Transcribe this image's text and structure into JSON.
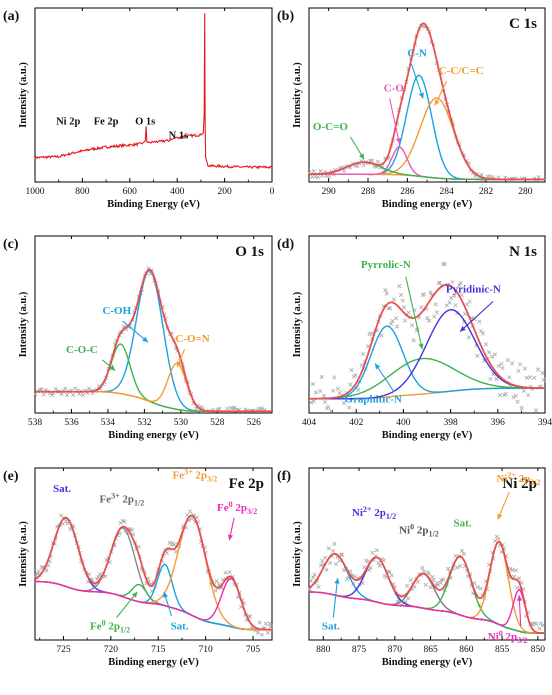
{
  "chart_data": [
    {
      "panel": "(a)",
      "type": "line",
      "title": "",
      "xlabel": "Binding Energy (eV)",
      "ylabel": "Intensity (a.u.)",
      "xlim": [
        1000,
        0
      ],
      "ylim": [
        0,
        100
      ],
      "x_reversed": true,
      "xticks": [
        1000,
        800,
        600,
        400,
        200,
        0
      ],
      "series": [
        {
          "color": "#e41a1c",
          "x": [
            1000,
            950,
            900,
            860,
            820,
            780,
            760,
            720,
            700,
            680,
            640,
            600,
            560,
            545,
            535,
            531,
            528,
            520,
            500,
            470,
            440,
            420,
            410,
            400,
            395,
            380,
            360,
            340,
            320,
            300,
            295,
            290,
            286,
            284,
            282,
            280,
            270,
            250,
            200,
            150,
            100,
            50,
            0
          ],
          "y": [
            14,
            14.3,
            14.6,
            16,
            17.3,
            18.3,
            19,
            19.6,
            20.1,
            20.3,
            20.8,
            21.3,
            21.8,
            22.5,
            23.5,
            32,
            23,
            22.5,
            23,
            23.3,
            23.8,
            24.6,
            25.3,
            25.8,
            25,
            26,
            26.3,
            26.6,
            26.9,
            27,
            27.6,
            28,
            40,
            97,
            34,
            14,
            9.5,
            9.2,
            9,
            8.7,
            8.5,
            8.5,
            8.5
          ]
        }
      ],
      "annotations": [
        {
          "text": "Ni 2p",
          "x": 860,
          "y": 33
        },
        {
          "text": "Fe 2p",
          "x": 700,
          "y": 33
        },
        {
          "text": "O 1s",
          "x": 535,
          "y": 33
        },
        {
          "text": "N 1s",
          "x": 395,
          "y": 25
        },
        {
          "text": "C 1s",
          "x": 275,
          "y": 105
        }
      ]
    },
    {
      "panel": "(b)",
      "type": "line",
      "title": "C 1s",
      "xlabel": "Binding energy (eV)",
      "ylabel": "Intensity (a.u.)",
      "xlim": [
        291,
        279
      ],
      "ylim": [
        0,
        100
      ],
      "x_reversed": true,
      "xticks": [
        290,
        288,
        286,
        284,
        282,
        280
      ],
      "series": [
        {
          "name": "C-N",
          "color": "#1ba1e2",
          "center": 285.4,
          "fwhm": 1.5,
          "height": 58
        },
        {
          "name": "C-C/C=C",
          "color": "#f39b2f",
          "center": 284.5,
          "fwhm": 2.0,
          "height": 46
        },
        {
          "name": "C-O",
          "color": "#ee55bb",
          "center": 286.4,
          "fwhm": 0.9,
          "height": 16
        },
        {
          "name": "O-C=O",
          "color": "#3cb44b",
          "center": 288.2,
          "fwhm": 2.0,
          "height": 7
        },
        {
          "name": "envelope",
          "color": "#e55050"
        },
        {
          "name": "background",
          "color": "#f39b2f",
          "baseline_left": 4.5,
          "baseline_right": 1.5
        }
      ]
    },
    {
      "panel": "(c)",
      "type": "line",
      "title": "O 1s",
      "xlabel": "Binding energy (eV)",
      "ylabel": "Intensity (a.u.)",
      "xlim": [
        538,
        525
      ],
      "ylim": [
        0,
        100
      ],
      "x_reversed": true,
      "xticks": [
        538,
        536,
        534,
        532,
        530,
        528,
        526
      ],
      "series": [
        {
          "name": "C-OH",
          "color": "#1ba1e2",
          "center": 531.7,
          "fwhm": 1.7,
          "height": 74
        },
        {
          "name": "C-O-C",
          "color": "#3cb44b",
          "center": 533.3,
          "fwhm": 1.2,
          "height": 28
        },
        {
          "name": "C-O=N",
          "color": "#f39b2f",
          "center": 530.2,
          "fwhm": 1.2,
          "height": 26
        },
        {
          "name": "envelope",
          "color": "#e55050"
        },
        {
          "name": "background",
          "color": "#f39b2f",
          "baseline_left": 12,
          "baseline_right": 1
        }
      ]
    },
    {
      "panel": "(d)",
      "type": "line",
      "title": "N 1s",
      "xlabel": "Binding energy (eV)",
      "ylabel": "Intensity (a.u.)",
      "xlim": [
        404,
        394
      ],
      "ylim": [
        0,
        100
      ],
      "x_reversed": true,
      "xticks": [
        404,
        402,
        400,
        398,
        396,
        394
      ],
      "series": [
        {
          "name": "Graphitic-N",
          "color": "#1ba1e2",
          "center": 400.7,
          "fwhm": 1.6,
          "height": 40
        },
        {
          "name": "Pyrrolic-N",
          "color": "#3cb44b",
          "center": 399.2,
          "fwhm": 3.2,
          "height": 20
        },
        {
          "name": "Pyridinic-N",
          "color": "#4433dd",
          "center": 398.0,
          "fwhm": 2.4,
          "height": 46
        },
        {
          "name": "envelope",
          "color": "#e55050"
        },
        {
          "name": "background",
          "color": "#f39b2f",
          "baseline_left": 8,
          "baseline_right": 14
        }
      ]
    },
    {
      "panel": "(e)",
      "type": "line",
      "title": "Fe 2p",
      "xlabel": "Binding energy (eV)",
      "ylabel": "Intensity (a.u.)",
      "xlim": [
        728,
        703
      ],
      "ylim": [
        0,
        100
      ],
      "x_reversed": true,
      "xticks": [
        725,
        720,
        715,
        710,
        705
      ],
      "series": [
        {
          "name": "Sat.",
          "color": "#4433dd",
          "center": 724.7,
          "fwhm": 3.0,
          "height": 40
        },
        {
          "name": "Fe3+ 2p1/2",
          "color": "#888888",
          "center": 718.7,
          "fwhm": 3.0,
          "height": 40
        },
        {
          "name": "Fe0 2p1/2",
          "color": "#3cb44b",
          "center": 717.0,
          "fwhm": 1.8,
          "height": 10
        },
        {
          "name": "Sat.",
          "color": "#1ba1e2",
          "center": 714.3,
          "fwhm": 1.8,
          "height": 24
        },
        {
          "name": "Fe3+ 2p3/2",
          "color": "#f39b2f",
          "center": 711.4,
          "fwhm": 3.4,
          "height": 58
        },
        {
          "name": "Fe0 2p3/2",
          "color": "#ee2bb0",
          "center": 707.3,
          "fwhm": 2.4,
          "height": 28
        },
        {
          "name": "envelope",
          "color": "#e55050"
        },
        {
          "name": "background",
          "color": "#f39b2f",
          "baseline_left": 34,
          "baseline_right": 6
        }
      ]
    },
    {
      "panel": "(f)",
      "type": "line",
      "title": "Ni 2p",
      "xlabel": "Binding energy (eV)",
      "ylabel": "Intensity (a.u.)",
      "xlim": [
        882,
        849
      ],
      "ylim": [
        0,
        100
      ],
      "x_reversed": true,
      "xticks": [
        880,
        875,
        870,
        865,
        860,
        855,
        850
      ],
      "series": [
        {
          "name": "Sat.",
          "color": "#1ba1e2",
          "center": 878.3,
          "fwhm": 4.0,
          "height": 24
        },
        {
          "name": "Ni2+ 2p1/2",
          "color": "#4433dd",
          "center": 872.5,
          "fwhm": 3.8,
          "height": 26
        },
        {
          "name": "Ni0 2p1/2",
          "color": "#777777",
          "center": 866.0,
          "fwhm": 3.6,
          "height": 20
        },
        {
          "name": "Sat.",
          "color": "#3cb44b",
          "center": 860.8,
          "fwhm": 3.6,
          "height": 34
        },
        {
          "name": "Ni2+ 2p3/2",
          "color": "#f39b2f",
          "center": 855.4,
          "fwhm": 3.0,
          "height": 48
        },
        {
          "name": "Ni0 2p3/2",
          "color": "#ee2bb0",
          "center": 852.6,
          "fwhm": 2.0,
          "height": 24
        },
        {
          "name": "envelope",
          "color": "#e55050"
        },
        {
          "name": "background",
          "color": "#f39b2f",
          "baseline_left": 28,
          "baseline_right": 4
        }
      ]
    }
  ],
  "panels": {
    "a": {
      "tag": "(a)",
      "xlabel": "Binding Energy (eV)",
      "ylabel": "Intensity (a.u.)",
      "labels": [
        "Ni 2p",
        "Fe 2p",
        "O 1s",
        "N 1s",
        "C 1s"
      ]
    },
    "b": {
      "tag": "(b)",
      "title": "C 1s",
      "xlabel": "Binding energy (eV)",
      "ylabel": "Intensity (a.u.)",
      "labels": [
        "C-N",
        "C-C/C=C",
        "C-O",
        "O-C=O"
      ]
    },
    "c": {
      "tag": "(c)",
      "title": "O 1s",
      "xlabel": "Binding energy (eV)",
      "ylabel": "Intensity (a.u.)",
      "labels": [
        "C-OH",
        "C-O-C",
        "C-O=N"
      ]
    },
    "d": {
      "tag": "(d)",
      "title": "N 1s",
      "xlabel": "Binding energy (eV)",
      "ylabel": "Intensity (a.u.)",
      "labels": [
        "Pyrrolic-N",
        "Pyridinic-N",
        "Graphitic-N"
      ]
    },
    "e": {
      "tag": "(e)",
      "title": "Fe 2p",
      "xlabel": "Binding energy (eV)",
      "ylabel": "Intensity (a.u.)",
      "labels": [
        {
          "base": "Sat."
        },
        {
          "base": "Fe",
          "sup": "3+",
          "rest": " 2p",
          "sub": "1/2"
        },
        {
          "base": "Fe",
          "sup": "3+",
          "rest": " 2p",
          "sub": "3/2"
        },
        {
          "base": "Fe",
          "sup": "0",
          "rest": " 2p",
          "sub": "3/2"
        },
        {
          "base": "Fe",
          "sup": "0",
          "rest": " 2p",
          "sub": "1/2"
        },
        {
          "base": "Sat."
        }
      ]
    },
    "f": {
      "tag": "(f)",
      "title": "Ni 2p",
      "xlabel": "Binding energy (eV)",
      "ylabel": "Intensity (a.u.)",
      "labels": [
        {
          "base": "Ni",
          "sup": "2+",
          "rest": " 2p",
          "sub": "1/2"
        },
        {
          "base": "Ni",
          "sup": "0",
          "rest": " 2p",
          "sub": "1/2"
        },
        {
          "base": "Sat."
        },
        {
          "base": "Ni",
          "sup": "2+",
          "rest": " 2p",
          "sub": "3/2"
        },
        {
          "base": "Sat."
        },
        {
          "base": "Ni",
          "sup": "0",
          "rest": " 2p",
          "sub": "3/2"
        }
      ]
    }
  }
}
